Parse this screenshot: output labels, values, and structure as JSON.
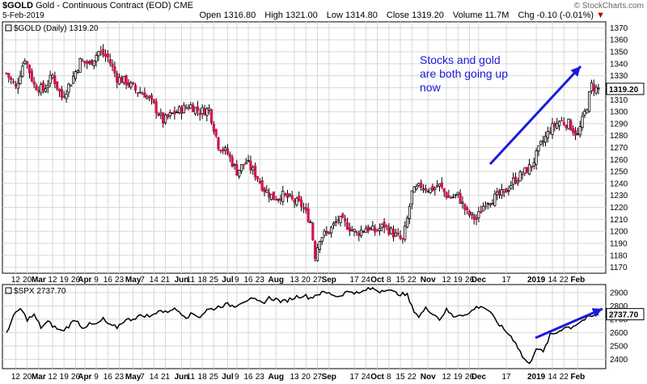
{
  "header": {
    "symbol": "$GOLD",
    "name": "Gold - Continuous Contract (EOD)",
    "exchange": "CME",
    "date": "5-Feb-2019",
    "copyright": "© StockCharts.com",
    "ohlc": {
      "open_label": "Open",
      "open": "1316.80",
      "high_label": "High",
      "high": "1321.00",
      "low_label": "Low",
      "low": "1314.80",
      "close_label": "Close",
      "close": "1319.20",
      "volume_label": "Volume",
      "volume": "11.7M",
      "chg_label": "Chg",
      "chg": "-0.10 (-0.01%)",
      "chg_icon": "down-triangle-icon"
    }
  },
  "annotation": {
    "line1": "Stocks and gold",
    "line2": "are both going up",
    "line3": "now",
    "color": "#1a1adc"
  },
  "chart_data": [
    {
      "type": "candlestick",
      "legend": "$GOLD (Daily) 1319.20",
      "last_value_label": "1319.20",
      "ylim": [
        1165,
        1375
      ],
      "yticks": [
        1170,
        1180,
        1190,
        1200,
        1210,
        1220,
        1230,
        1240,
        1250,
        1260,
        1270,
        1280,
        1290,
        1300,
        1310,
        1320,
        1330,
        1340,
        1350,
        1360,
        1370
      ],
      "x_tick_labels": [
        {
          "label": "12",
          "bold": false
        },
        {
          "label": "20",
          "bold": false
        },
        {
          "label": "Mar",
          "bold": true
        },
        {
          "label": "12",
          "bold": false
        },
        {
          "label": "19",
          "bold": false
        },
        {
          "label": "26",
          "bold": false
        },
        {
          "label": "Apr",
          "bold": true
        },
        {
          "label": "9",
          "bold": false
        },
        {
          "label": "16",
          "bold": false
        },
        {
          "label": "23",
          "bold": false
        },
        {
          "label": "May",
          "bold": true
        },
        {
          "label": "7",
          "bold": false
        },
        {
          "label": "14",
          "bold": false
        },
        {
          "label": "21",
          "bold": false
        },
        {
          "label": "Jun",
          "bold": true
        },
        {
          "label": "11",
          "bold": false
        },
        {
          "label": "18",
          "bold": false
        },
        {
          "label": "25",
          "bold": false
        },
        {
          "label": "Jul",
          "bold": true
        },
        {
          "label": "9",
          "bold": false
        },
        {
          "label": "16",
          "bold": false
        },
        {
          "label": "23",
          "bold": false
        },
        {
          "label": "Aug",
          "bold": true
        },
        {
          "label": "13",
          "bold": false
        },
        {
          "label": "20",
          "bold": false
        },
        {
          "label": "27",
          "bold": false
        },
        {
          "label": "Sep",
          "bold": true
        },
        {
          "label": "17",
          "bold": false
        },
        {
          "label": "24",
          "bold": false
        },
        {
          "label": "Oct",
          "bold": true
        },
        {
          "label": "8",
          "bold": false
        },
        {
          "label": "15",
          "bold": false
        },
        {
          "label": "22",
          "bold": false
        },
        {
          "label": "Nov",
          "bold": true
        },
        {
          "label": "12",
          "bold": false
        },
        {
          "label": "19",
          "bold": false
        },
        {
          "label": "26",
          "bold": false
        },
        {
          "label": "Dec",
          "bold": true
        },
        {
          "label": "17",
          "bold": false
        },
        {
          "label": "2019",
          "bold": true
        },
        {
          "label": "14",
          "bold": false
        },
        {
          "label": "22",
          "bold": false
        },
        {
          "label": "Feb",
          "bold": true
        }
      ],
      "x_tick_index": [
        4,
        9,
        14,
        20,
        25,
        30,
        34,
        39,
        44,
        49,
        55,
        59,
        64,
        69,
        76,
        80,
        85,
        90,
        96,
        100,
        105,
        110,
        117,
        125,
        130,
        135,
        140,
        151,
        156,
        161,
        166,
        171,
        176,
        183,
        191,
        196,
        201,
        205,
        217,
        230,
        237,
        242,
        248
      ],
      "key_points": [
        [
          0,
          1332
        ],
        [
          4,
          1320
        ],
        [
          8,
          1345
        ],
        [
          12,
          1322
        ],
        [
          16,
          1318
        ],
        [
          20,
          1330
        ],
        [
          24,
          1312
        ],
        [
          28,
          1325
        ],
        [
          32,
          1342
        ],
        [
          36,
          1340
        ],
        [
          40,
          1350
        ],
        [
          44,
          1345
        ],
        [
          48,
          1328
        ],
        [
          52,
          1325
        ],
        [
          56,
          1318
        ],
        [
          60,
          1315
        ],
        [
          64,
          1305
        ],
        [
          68,
          1292
        ],
        [
          72,
          1298
        ],
        [
          76,
          1302
        ],
        [
          80,
          1305
        ],
        [
          84,
          1300
        ],
        [
          88,
          1302
        ],
        [
          92,
          1272
        ],
        [
          96,
          1265
        ],
        [
          100,
          1250
        ],
        [
          104,
          1258
        ],
        [
          108,
          1248
        ],
        [
          112,
          1235
        ],
        [
          116,
          1228
        ],
        [
          120,
          1230
        ],
        [
          124,
          1226
        ],
        [
          128,
          1222
        ],
        [
          132,
          1208
        ],
        [
          134,
          1180
        ],
        [
          136,
          1195
        ],
        [
          140,
          1200
        ],
        [
          144,
          1210
        ],
        [
          148,
          1205
        ],
        [
          152,
          1198
        ],
        [
          156,
          1203
        ],
        [
          160,
          1200
        ],
        [
          164,
          1205
        ],
        [
          168,
          1198
        ],
        [
          172,
          1192
        ],
        [
          174,
          1210
        ],
        [
          176,
          1232
        ],
        [
          180,
          1238
        ],
        [
          184,
          1235
        ],
        [
          188,
          1238
        ],
        [
          192,
          1228
        ],
        [
          196,
          1230
        ],
        [
          200,
          1215
        ],
        [
          204,
          1210
        ],
        [
          208,
          1225
        ],
        [
          212,
          1228
        ],
        [
          216,
          1232
        ],
        [
          220,
          1242
        ],
        [
          224,
          1248
        ],
        [
          228,
          1255
        ],
        [
          232,
          1272
        ],
        [
          236,
          1285
        ],
        [
          240,
          1292
        ],
        [
          244,
          1290
        ],
        [
          248,
          1280
        ],
        [
          252,
          1305
        ],
        [
          254,
          1322
        ],
        [
          256,
          1319
        ]
      ]
    },
    {
      "type": "line",
      "legend": "$SPX 2737.70",
      "last_value_label": "2737.70",
      "ylim": [
        2330,
        2960
      ],
      "yticks": [
        2400,
        2500,
        2600,
        2700,
        2800,
        2900
      ],
      "x_tick_labels": [
        {
          "label": "12",
          "bold": false
        },
        {
          "label": "20",
          "bold": false
        },
        {
          "label": "Mar",
          "bold": true
        },
        {
          "label": "12",
          "bold": false
        },
        {
          "label": "19",
          "bold": false
        },
        {
          "label": "26",
          "bold": false
        },
        {
          "label": "Apr",
          "bold": true
        },
        {
          "label": "9",
          "bold": false
        },
        {
          "label": "16",
          "bold": false
        },
        {
          "label": "23",
          "bold": false
        },
        {
          "label": "May",
          "bold": true
        },
        {
          "label": "7",
          "bold": false
        },
        {
          "label": "14",
          "bold": false
        },
        {
          "label": "21",
          "bold": false
        },
        {
          "label": "Jun",
          "bold": true
        },
        {
          "label": "11",
          "bold": false
        },
        {
          "label": "18",
          "bold": false
        },
        {
          "label": "25",
          "bold": false
        },
        {
          "label": "Jul",
          "bold": true
        },
        {
          "label": "9",
          "bold": false
        },
        {
          "label": "16",
          "bold": false
        },
        {
          "label": "23",
          "bold": false
        },
        {
          "label": "Aug",
          "bold": true
        },
        {
          "label": "13",
          "bold": false
        },
        {
          "label": "20",
          "bold": false
        },
        {
          "label": "27",
          "bold": false
        },
        {
          "label": "Sep",
          "bold": true
        },
        {
          "label": "17",
          "bold": false
        },
        {
          "label": "24",
          "bold": false
        },
        {
          "label": "Oct",
          "bold": true
        },
        {
          "label": "8",
          "bold": false
        },
        {
          "label": "15",
          "bold": false
        },
        {
          "label": "22",
          "bold": false
        },
        {
          "label": "Nov",
          "bold": true
        },
        {
          "label": "12",
          "bold": false
        },
        {
          "label": "19",
          "bold": false
        },
        {
          "label": "26",
          "bold": false
        },
        {
          "label": "Dec",
          "bold": true
        },
        {
          "label": "17",
          "bold": false
        },
        {
          "label": "2019",
          "bold": true
        },
        {
          "label": "14",
          "bold": false
        },
        {
          "label": "22",
          "bold": false
        },
        {
          "label": "Feb",
          "bold": true
        }
      ],
      "key_points": [
        [
          0,
          2600
        ],
        [
          3,
          2720
        ],
        [
          6,
          2780
        ],
        [
          9,
          2700
        ],
        [
          12,
          2730
        ],
        [
          15,
          2640
        ],
        [
          18,
          2680
        ],
        [
          21,
          2640
        ],
        [
          24,
          2610
        ],
        [
          27,
          2650
        ],
        [
          30,
          2700
        ],
        [
          33,
          2640
        ],
        [
          36,
          2660
        ],
        [
          39,
          2660
        ],
        [
          42,
          2700
        ],
        [
          45,
          2650
        ],
        [
          48,
          2640
        ],
        [
          51,
          2690
        ],
        [
          54,
          2700
        ],
        [
          57,
          2720
        ],
        [
          60,
          2730
        ],
        [
          63,
          2720
        ],
        [
          66,
          2770
        ],
        [
          69,
          2750
        ],
        [
          72,
          2780
        ],
        [
          75,
          2760
        ],
        [
          78,
          2720
        ],
        [
          81,
          2740
        ],
        [
          84,
          2720
        ],
        [
          87,
          2770
        ],
        [
          90,
          2780
        ],
        [
          93,
          2800
        ],
        [
          96,
          2810
        ],
        [
          99,
          2800
        ],
        [
          102,
          2830
        ],
        [
          105,
          2850
        ],
        [
          108,
          2840
        ],
        [
          111,
          2820
        ],
        [
          114,
          2860
        ],
        [
          117,
          2850
        ],
        [
          120,
          2830
        ],
        [
          123,
          2850
        ],
        [
          126,
          2870
        ],
        [
          129,
          2880
        ],
        [
          132,
          2860
        ],
        [
          135,
          2890
        ],
        [
          138,
          2900
        ],
        [
          141,
          2890
        ],
        [
          144,
          2870
        ],
        [
          147,
          2900
        ],
        [
          150,
          2910
        ],
        [
          153,
          2890
        ],
        [
          156,
          2920
        ],
        [
          159,
          2930
        ],
        [
          162,
          2910
        ],
        [
          165,
          2930
        ],
        [
          168,
          2900
        ],
        [
          171,
          2890
        ],
        [
          174,
          2880
        ],
        [
          176,
          2790
        ],
        [
          179,
          2720
        ],
        [
          182,
          2780
        ],
        [
          185,
          2750
        ],
        [
          188,
          2700
        ],
        [
          191,
          2770
        ],
        [
          194,
          2720
        ],
        [
          197,
          2740
        ],
        [
          200,
          2730
        ],
        [
          203,
          2780
        ],
        [
          206,
          2800
        ],
        [
          209,
          2770
        ],
        [
          212,
          2700
        ],
        [
          215,
          2640
        ],
        [
          218,
          2590
        ],
        [
          221,
          2530
        ],
        [
          224,
          2420
        ],
        [
          227,
          2360
        ],
        [
          230,
          2490
        ],
        [
          233,
          2450
        ],
        [
          236,
          2580
        ],
        [
          239,
          2600
        ],
        [
          242,
          2640
        ],
        [
          245,
          2640
        ],
        [
          248,
          2670
        ],
        [
          251,
          2700
        ],
        [
          254,
          2720
        ],
        [
          257,
          2738
        ]
      ]
    }
  ]
}
